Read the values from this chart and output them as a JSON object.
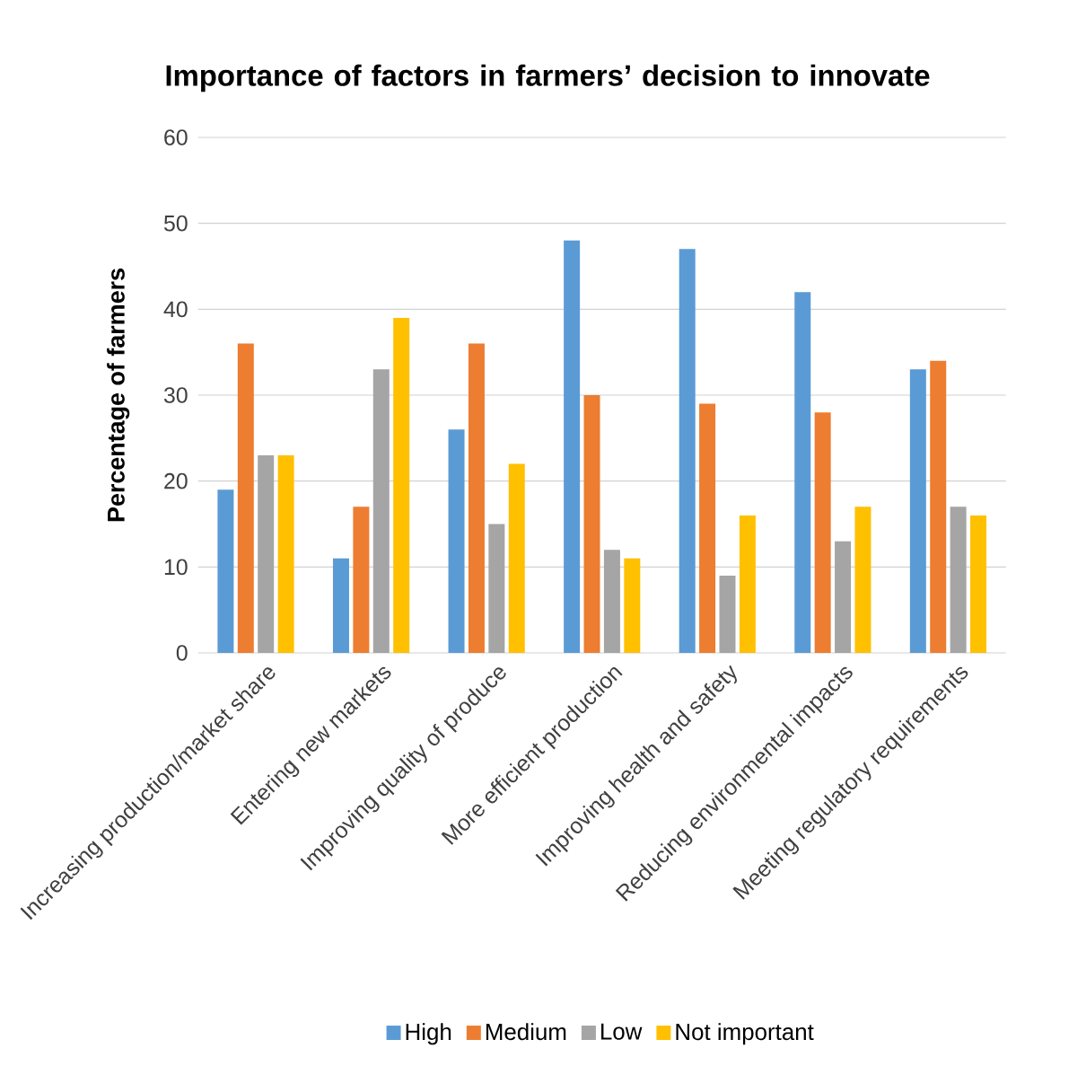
{
  "chart_data": {
    "type": "bar",
    "title": "Importance of factors in farmers’ decision to innovate",
    "ylabel": "Percentage of farmers",
    "categories": [
      "Increasing production/market share",
      "Entering new markets",
      "Improving quality of produce",
      "More efficient production",
      "Improving health and safety",
      "Reducing environmental impacts",
      "Meeting regulatory requirements"
    ],
    "series": [
      {
        "name": "High",
        "color": "#5b9bd5",
        "values": [
          19,
          11,
          26,
          48,
          47,
          42,
          33
        ]
      },
      {
        "name": "Medium",
        "color": "#ed7d31",
        "values": [
          36,
          17,
          36,
          30,
          29,
          28,
          34
        ]
      },
      {
        "name": "Low",
        "color": "#a5a5a5",
        "values": [
          23,
          33,
          15,
          12,
          9,
          13,
          17
        ]
      },
      {
        "name": "Not important",
        "color": "#ffc000",
        "values": [
          23,
          39,
          22,
          11,
          16,
          17,
          16
        ]
      }
    ],
    "ylim": [
      0,
      60
    ],
    "yticks": [
      0,
      10,
      20,
      30,
      40,
      50,
      60
    ],
    "grid": "y",
    "legend": "bottom"
  }
}
